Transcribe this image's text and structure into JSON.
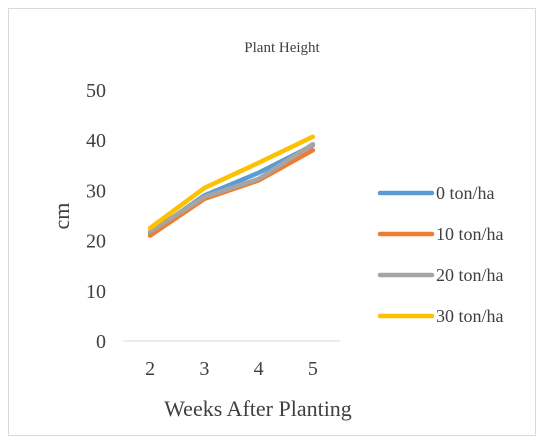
{
  "chart_data": {
    "type": "line",
    "title": "Plant Height",
    "xlabel": "Weeks After Planting",
    "ylabel": "cm",
    "x": [
      2,
      3,
      4,
      5
    ],
    "x_tick_labels": [
      "2",
      "3",
      "4",
      "5"
    ],
    "ylim": [
      0,
      50
    ],
    "y_ticks": [
      0,
      10,
      20,
      30,
      40,
      50
    ],
    "y_tick_labels": [
      "0",
      "10",
      "20",
      "30",
      "40",
      "50"
    ],
    "grid": false,
    "legend_position": "right",
    "series": [
      {
        "name": "0 ton/ha",
        "color": "#5b9bd5",
        "values": [
          21.5,
          29,
          33.5,
          39
        ]
      },
      {
        "name": "10 ton/ha",
        "color": "#ed7d31",
        "values": [
          21,
          28.3,
          32,
          38
        ]
      },
      {
        "name": "20 ton/ha",
        "color": "#a5a5a5",
        "values": [
          21.8,
          28.7,
          32.3,
          39.2
        ]
      },
      {
        "name": "30 ton/ha",
        "color": "#ffc000",
        "values": [
          22.5,
          30.5,
          35.5,
          40.7
        ]
      }
    ]
  }
}
